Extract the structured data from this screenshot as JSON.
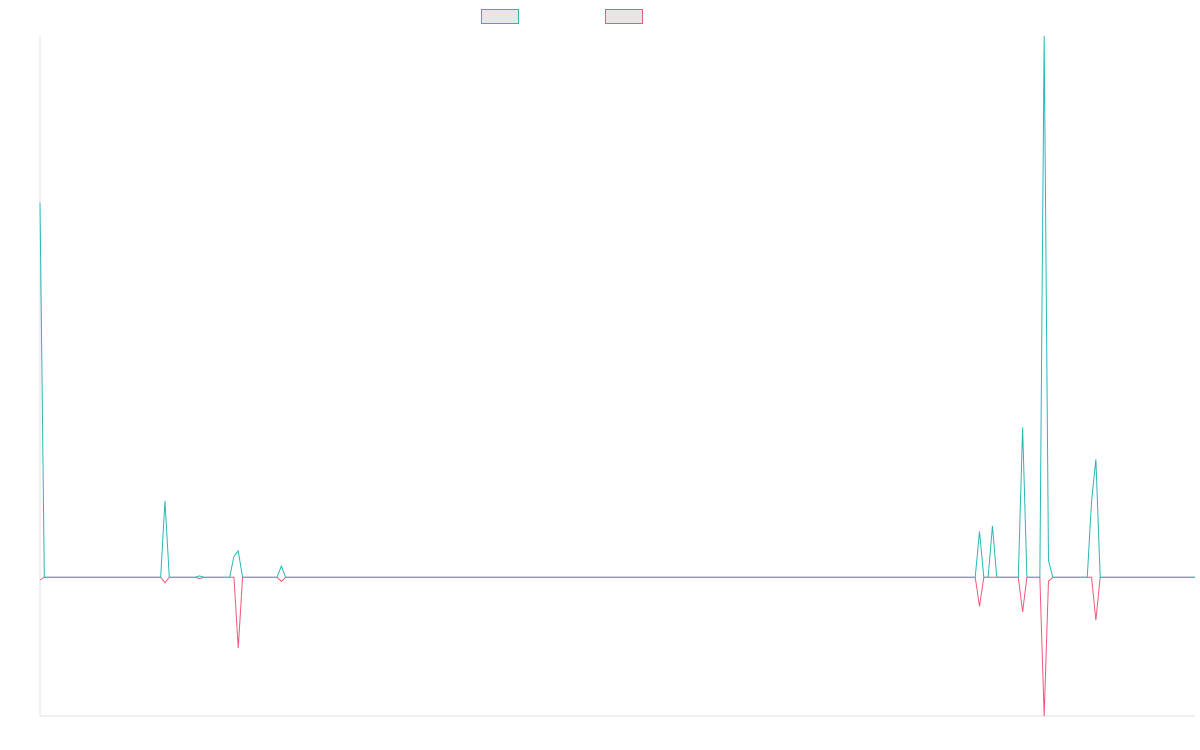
{
  "chart_data": {
    "type": "line",
    "title": "",
    "xlabel": "",
    "ylabel": "",
    "grid": false,
    "legend_position": "top-center",
    "x": [
      0,
      1,
      2,
      3,
      4,
      5,
      6,
      7,
      8,
      9,
      10,
      11,
      12,
      13,
      14,
      15,
      16,
      17,
      18,
      19,
      20,
      21,
      22,
      23,
      24,
      25,
      26,
      27,
      28,
      29,
      30,
      31,
      32,
      33,
      34,
      35,
      36,
      37,
      38,
      39,
      40,
      41,
      42,
      43,
      44,
      45,
      46,
      47,
      48,
      49,
      50,
      51,
      52,
      53,
      54,
      55,
      56,
      57,
      58,
      59,
      60,
      61,
      62,
      63,
      64,
      65,
      66,
      67,
      68,
      69,
      70,
      71,
      72,
      73,
      74,
      75,
      76,
      77,
      78,
      79,
      80,
      81,
      82,
      83,
      84,
      85,
      86,
      87,
      88,
      89,
      90,
      91,
      92,
      93,
      94,
      95,
      96,
      97,
      98,
      99,
      100,
      101,
      102,
      103,
      104,
      105,
      106,
      107,
      108,
      109,
      110,
      111,
      112,
      113,
      114,
      115,
      116,
      117,
      118,
      119,
      120,
      121,
      122,
      123,
      124,
      125,
      126,
      127,
      128,
      129,
      130,
      131,
      132,
      133,
      134,
      135,
      136,
      137,
      138,
      139,
      140,
      141,
      142,
      143,
      144,
      145,
      146,
      147,
      148,
      149,
      150,
      151,
      152,
      153,
      154,
      155,
      156,
      157,
      158,
      159,
      160,
      161,
      162,
      163,
      164,
      165,
      166,
      167,
      168,
      169,
      170,
      171,
      172,
      173,
      174,
      175,
      176,
      177,
      178,
      179,
      180,
      181,
      182,
      183,
      184,
      185,
      186,
      187,
      188,
      189,
      190,
      191,
      192,
      193,
      194,
      195,
      196,
      197,
      198,
      199,
      200,
      201,
      202,
      203,
      204,
      205,
      206,
      207,
      208,
      209,
      210,
      211,
      212,
      213,
      214,
      215,
      216,
      217,
      218,
      219,
      220,
      221,
      222,
      223,
      224,
      225,
      226,
      227,
      228,
      229,
      230,
      231,
      232,
      233,
      234,
      235,
      236,
      237,
      238,
      239,
      240,
      241,
      242,
      243,
      244,
      245,
      246,
      247,
      248,
      249,
      250,
      251,
      252,
      253,
      254,
      255,
      256,
      257,
      258,
      259,
      260,
      261,
      262,
      263,
      264,
      265,
      266,
      267,
      268
    ],
    "ylim": [
      -1.0,
      3.9
    ],
    "series": [
      {
        "name": "",
        "color": "#2ab7b5",
        "spikes": [
          {
            "x": 0,
            "y": 2.7
          },
          {
            "x": 29,
            "y": 0.55
          },
          {
            "x": 37,
            "y": 0.01
          },
          {
            "x": 45,
            "y": 0.15
          },
          {
            "x": 46,
            "y": 0.19
          },
          {
            "x": 56,
            "y": 0.08
          },
          {
            "x": 218,
            "y": 0.33
          },
          {
            "x": 221,
            "y": 0.37
          },
          {
            "x": 228,
            "y": 1.08
          },
          {
            "x": 233,
            "y": 3.9
          },
          {
            "x": 234,
            "y": 0.12
          },
          {
            "x": 244,
            "y": 0.55
          },
          {
            "x": 245,
            "y": 0.85
          }
        ]
      },
      {
        "name": "",
        "color": "#f0587b",
        "spikes": [
          {
            "x": 0,
            "y": -0.02
          },
          {
            "x": 29,
            "y": -0.04
          },
          {
            "x": 37,
            "y": -0.01
          },
          {
            "x": 46,
            "y": -0.51
          },
          {
            "x": 56,
            "y": -0.03
          },
          {
            "x": 218,
            "y": -0.21
          },
          {
            "x": 228,
            "y": -0.25
          },
          {
            "x": 233,
            "y": -1.0
          },
          {
            "x": 234,
            "y": -0.03
          },
          {
            "x": 245,
            "y": -0.31
          }
        ]
      }
    ],
    "legend": [
      {
        "label": "",
        "fill": "#e6e6e6",
        "border": "#2ab7b5"
      },
      {
        "label": "",
        "fill": "#e6e6e6",
        "border": "#f0587b"
      }
    ]
  }
}
